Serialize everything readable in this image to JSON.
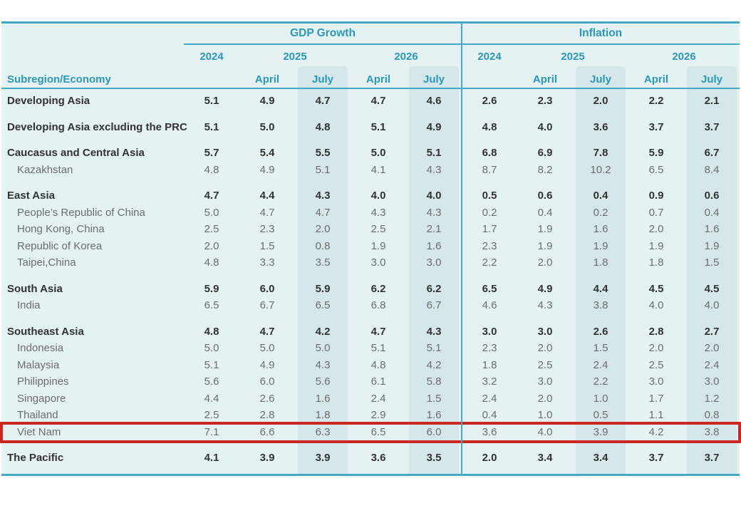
{
  "table": {
    "header": {
      "gdp_title": "GDP Growth",
      "inflation_title": "Inflation",
      "year_2024": "2024",
      "year_2025": "2025",
      "year_2026": "2026",
      "month_april": "April",
      "month_july": "July",
      "row_header": "Subregion/Economy"
    },
    "columns_per_section": [
      "2024",
      "2025 April",
      "2025 July",
      "2026 April",
      "2026 July"
    ],
    "rows": [
      {
        "name": "Developing Asia",
        "bold": true,
        "indent": false,
        "gap_before": false,
        "highlight": false,
        "gdp": [
          "5.1",
          "4.9",
          "4.7",
          "4.7",
          "4.6"
        ],
        "inflation": [
          "2.6",
          "2.3",
          "2.0",
          "2.2",
          "2.1"
        ]
      },
      {
        "name": "Developing Asia excluding the PRC",
        "bold": true,
        "indent": false,
        "gap_before": true,
        "highlight": false,
        "gdp": [
          "5.1",
          "5.0",
          "4.8",
          "5.1",
          "4.9"
        ],
        "inflation": [
          "4.8",
          "4.0",
          "3.6",
          "3.7",
          "3.7"
        ]
      },
      {
        "name": "Caucasus and Central Asia",
        "bold": true,
        "indent": false,
        "gap_before": true,
        "highlight": false,
        "gdp": [
          "5.7",
          "5.4",
          "5.5",
          "5.0",
          "5.1"
        ],
        "inflation": [
          "6.8",
          "6.9",
          "7.8",
          "5.9",
          "6.7"
        ]
      },
      {
        "name": "Kazakhstan",
        "bold": false,
        "indent": true,
        "gap_before": false,
        "highlight": false,
        "gdp": [
          "4.8",
          "4.9",
          "5.1",
          "4.1",
          "4.3"
        ],
        "inflation": [
          "8.7",
          "8.2",
          "10.2",
          "6.5",
          "8.4"
        ]
      },
      {
        "name": "East Asia",
        "bold": true,
        "indent": false,
        "gap_before": true,
        "highlight": false,
        "gdp": [
          "4.7",
          "4.4",
          "4.3",
          "4.0",
          "4.0"
        ],
        "inflation": [
          "0.5",
          "0.6",
          "0.4",
          "0.9",
          "0.6"
        ]
      },
      {
        "name": "People’s Republic of China",
        "bold": false,
        "indent": true,
        "gap_before": false,
        "highlight": false,
        "gdp": [
          "5.0",
          "4.7",
          "4.7",
          "4.3",
          "4.3"
        ],
        "inflation": [
          "0.2",
          "0.4",
          "0.2",
          "0.7",
          "0.4"
        ]
      },
      {
        "name": "Hong Kong, China",
        "bold": false,
        "indent": true,
        "gap_before": false,
        "highlight": false,
        "gdp": [
          "2.5",
          "2.3",
          "2.0",
          "2.5",
          "2.1"
        ],
        "inflation": [
          "1.7",
          "1.9",
          "1.6",
          "2.0",
          "1.6"
        ]
      },
      {
        "name": "Republic of Korea",
        "bold": false,
        "indent": true,
        "gap_before": false,
        "highlight": false,
        "gdp": [
          "2.0",
          "1.5",
          "0.8",
          "1.9",
          "1.6"
        ],
        "inflation": [
          "2.3",
          "1.9",
          "1.9",
          "1.9",
          "1.9"
        ]
      },
      {
        "name": "Taipei,China",
        "bold": false,
        "indent": true,
        "gap_before": false,
        "highlight": false,
        "gdp": [
          "4.8",
          "3.3",
          "3.5",
          "3.0",
          "3.0"
        ],
        "inflation": [
          "2.2",
          "2.0",
          "1.8",
          "1.8",
          "1.5"
        ]
      },
      {
        "name": "South Asia",
        "bold": true,
        "indent": false,
        "gap_before": true,
        "highlight": false,
        "gdp": [
          "5.9",
          "6.0",
          "5.9",
          "6.2",
          "6.2"
        ],
        "inflation": [
          "6.5",
          "4.9",
          "4.4",
          "4.5",
          "4.5"
        ]
      },
      {
        "name": "India",
        "bold": false,
        "indent": true,
        "gap_before": false,
        "highlight": false,
        "gdp": [
          "6.5",
          "6.7",
          "6.5",
          "6.8",
          "6.7"
        ],
        "inflation": [
          "4.6",
          "4.3",
          "3.8",
          "4.0",
          "4.0"
        ]
      },
      {
        "name": "Southeast Asia",
        "bold": true,
        "indent": false,
        "gap_before": true,
        "highlight": false,
        "gdp": [
          "4.8",
          "4.7",
          "4.2",
          "4.7",
          "4.3"
        ],
        "inflation": [
          "3.0",
          "3.0",
          "2.6",
          "2.8",
          "2.7"
        ]
      },
      {
        "name": "Indonesia",
        "bold": false,
        "indent": true,
        "gap_before": false,
        "highlight": false,
        "gdp": [
          "5.0",
          "5.0",
          "5.0",
          "5.1",
          "5.1"
        ],
        "inflation": [
          "2.3",
          "2.0",
          "1.5",
          "2.0",
          "2.0"
        ]
      },
      {
        "name": "Malaysia",
        "bold": false,
        "indent": true,
        "gap_before": false,
        "highlight": false,
        "gdp": [
          "5.1",
          "4.9",
          "4.3",
          "4.8",
          "4.2"
        ],
        "inflation": [
          "1.8",
          "2.5",
          "2.4",
          "2.5",
          "2.4"
        ]
      },
      {
        "name": "Philippines",
        "bold": false,
        "indent": true,
        "gap_before": false,
        "highlight": false,
        "gdp": [
          "5.6",
          "6.0",
          "5.6",
          "6.1",
          "5.8"
        ],
        "inflation": [
          "3.2",
          "3.0",
          "2.2",
          "3.0",
          "3.0"
        ]
      },
      {
        "name": "Singapore",
        "bold": false,
        "indent": true,
        "gap_before": false,
        "highlight": false,
        "gdp": [
          "4.4",
          "2.6",
          "1.6",
          "2.4",
          "1.5"
        ],
        "inflation": [
          "2.4",
          "2.0",
          "1.0",
          "1.7",
          "1.2"
        ]
      },
      {
        "name": "Thailand",
        "bold": false,
        "indent": true,
        "gap_before": false,
        "highlight": false,
        "gdp": [
          "2.5",
          "2.8",
          "1.8",
          "2.9",
          "1.6"
        ],
        "inflation": [
          "0.4",
          "1.0",
          "0.5",
          "1.1",
          "0.8"
        ]
      },
      {
        "name": "Viet Nam",
        "bold": false,
        "indent": true,
        "gap_before": false,
        "highlight": true,
        "gdp": [
          "7.1",
          "6.6",
          "6.3",
          "6.5",
          "6.0"
        ],
        "inflation": [
          "3.6",
          "4.0",
          "3.9",
          "4.2",
          "3.8"
        ]
      },
      {
        "name": "The Pacific",
        "bold": true,
        "indent": false,
        "gap_before": true,
        "highlight": false,
        "gdp": [
          "4.1",
          "3.9",
          "3.9",
          "3.6",
          "3.5"
        ],
        "inflation": [
          "2.0",
          "3.4",
          "3.4",
          "3.7",
          "3.7"
        ]
      }
    ]
  },
  "colors": {
    "teal_line": "#44a9c4",
    "teal_text": "#2a98b6",
    "table_background": "#e4f2f4",
    "july_column_shade": "#d4e7ea",
    "bold_row_text": "#323232",
    "sub_row_text": "#6c6c6c",
    "highlight_red": "#ca2820"
  }
}
